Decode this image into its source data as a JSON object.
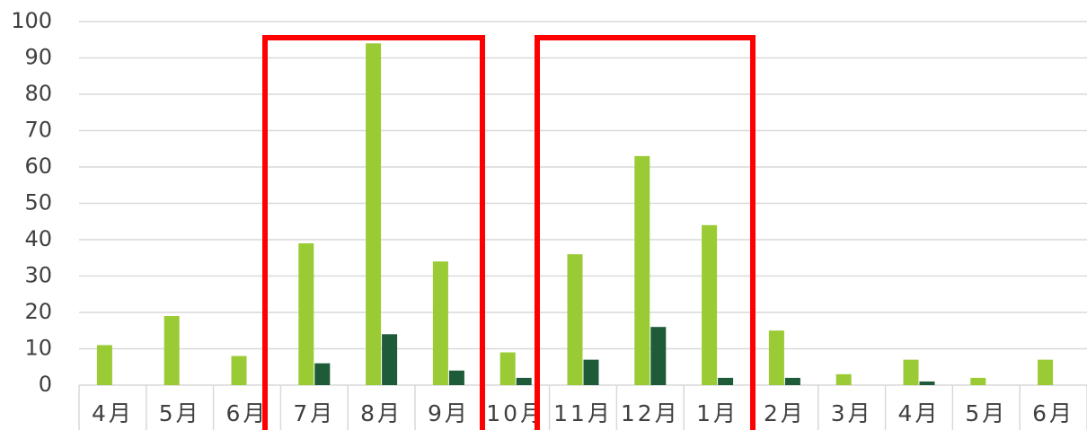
{
  "chart_data": {
    "type": "bar",
    "categories": [
      "4月",
      "5月",
      "6月",
      "7月",
      "8月",
      "9月",
      "10月",
      "11月",
      "12月",
      "1月",
      "2月",
      "3月",
      "4月",
      "5月",
      "6月"
    ],
    "series": [
      {
        "color": "#9acb34",
        "values": [
          11,
          19,
          8,
          39,
          94,
          34,
          9,
          36,
          63,
          44,
          15,
          3,
          7,
          2,
          7
        ]
      },
      {
        "color": "#1e5b38",
        "values": [
          0,
          0,
          0,
          6,
          14,
          4,
          2,
          7,
          16,
          2,
          2,
          0,
          1,
          0,
          0
        ]
      }
    ],
    "ylim": [
      0,
      100
    ],
    "yticks": [
      0,
      10,
      20,
      30,
      40,
      50,
      60,
      70,
      80,
      90,
      100
    ],
    "grid": true
  }
}
